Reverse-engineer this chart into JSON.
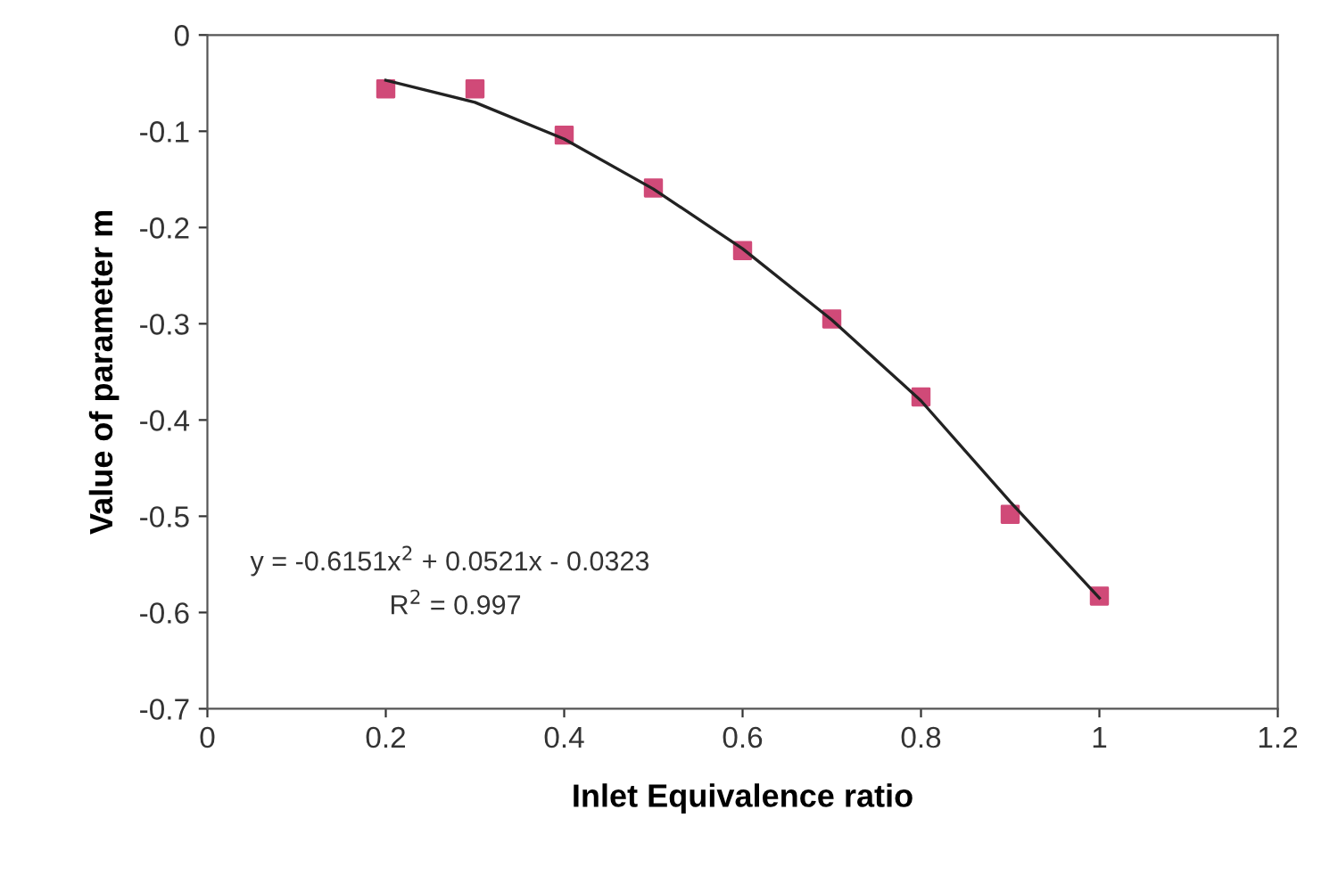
{
  "chart_data": {
    "type": "scatter",
    "xlabel": "Inlet Equivalence ratio",
    "ylabel": "Value of parameter m",
    "x": [
      0.2,
      0.3,
      0.4,
      0.5,
      0.6,
      0.7,
      0.8,
      0.9,
      1.0
    ],
    "series": [
      {
        "color": "#d04a78",
        "marker": "square",
        "values": [
          -0.056,
          -0.056,
          -0.104,
          -0.159,
          -0.224,
          -0.295,
          -0.376,
          -0.498,
          -0.583
        ]
      },
      {
        "type": "line",
        "color": "#222222",
        "marker": "none",
        "line_style": "solid",
        "x": [
          0.2,
          0.3,
          0.4,
          0.5,
          0.6,
          0.7,
          0.8,
          0.9,
          1.0
        ],
        "values": [
          -0.047,
          -0.07,
          -0.108,
          -0.16,
          -0.222,
          -0.296,
          -0.38,
          -0.485,
          -0.585
        ]
      }
    ],
    "xlim": [
      0,
      1.2
    ],
    "xticks": [
      0,
      0.2,
      0.4,
      0.6,
      0.8,
      1,
      1.2
    ],
    "ylim": [
      -0.7,
      0
    ],
    "yticks": [
      0,
      -0.1,
      -0.2,
      -0.3,
      -0.4,
      -0.5,
      -0.6,
      -0.7
    ],
    "grid": false,
    "annotations": [
      "y = -0.6151x$^{2}$ + 0.0521x - 0.0323",
      "R$^{2}$ = 0.997"
    ]
  }
}
